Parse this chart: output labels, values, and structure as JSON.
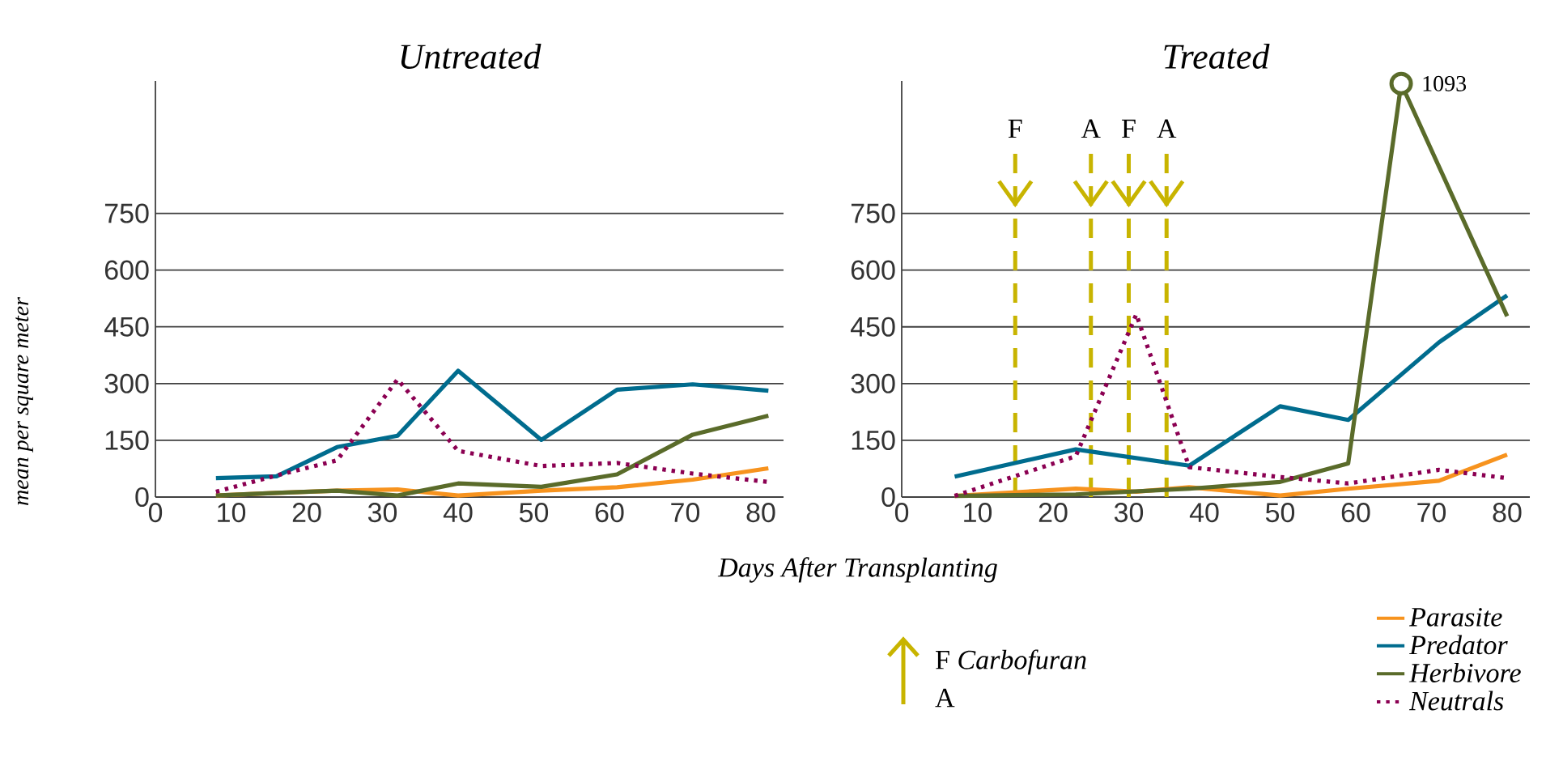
{
  "chart_data": [
    {
      "type": "line",
      "title": "Untreated",
      "xlabel": "Days After Transplanting",
      "ylabel": "mean per square meter",
      "xlim": [
        0,
        83
      ],
      "ylim": [
        0,
        1100
      ],
      "xticks": [
        0,
        10,
        20,
        30,
        40,
        50,
        60,
        70,
        80
      ],
      "yticks": [
        0,
        150,
        300,
        450,
        600,
        750
      ],
      "grid": "y",
      "x": [
        8,
        16,
        24,
        32,
        40,
        51,
        61,
        71,
        81
      ],
      "series": [
        {
          "color": "#f7931e",
          "values": [
            4,
            11,
            17,
            20,
            4,
            17,
            26,
            46,
            76
          ]
        },
        {
          "color": "#006c8e",
          "values": [
            50,
            55,
            132,
            162,
            334,
            151,
            284,
            298,
            281
          ]
        },
        {
          "color": "#5a6b2a",
          "values": [
            4,
            11,
            17,
            4,
            36,
            27,
            60,
            165,
            215
          ]
        },
        {
          "color": "#8b0052",
          "line_style": "dotted",
          "values": [
            14,
            57,
            97,
            311,
            122,
            82,
            90,
            62,
            40
          ]
        }
      ]
    },
    {
      "type": "line",
      "title": "Treated",
      "xlim": [
        0,
        83
      ],
      "ylim": [
        0,
        1100
      ],
      "xticks": [
        0,
        10,
        20,
        30,
        40,
        50,
        60,
        70,
        80
      ],
      "yticks": [
        0,
        150,
        300,
        450,
        600,
        750
      ],
      "grid": "y",
      "legend": "bottom right",
      "series": [
        {
          "name": "Parasite",
          "color": "#f7931e",
          "x": [
            7,
            23,
            31,
            38,
            50,
            59,
            71,
            80
          ],
          "values": [
            3,
            22,
            14,
            26,
            4,
            22,
            43,
            112
          ]
        },
        {
          "name": "Predator",
          "color": "#006c8e",
          "x": [
            7,
            23,
            38,
            50,
            59,
            71,
            80
          ],
          "values": [
            54,
            126,
            83,
            240,
            204,
            409,
            533
          ]
        },
        {
          "name": "Herbivore",
          "color": "#5a6b2a",
          "x": [
            7,
            23,
            38,
            50,
            59,
            66,
            80
          ],
          "values": [
            3,
            7,
            22,
            40,
            89,
            1093,
            478
          ]
        },
        {
          "name": "Neutrals",
          "color": "#8b0052",
          "line_style": "dotted",
          "x": [
            7,
            23,
            31,
            38,
            50,
            59,
            71,
            80
          ],
          "values": [
            3,
            108,
            483,
            79,
            53,
            36,
            72,
            50
          ]
        }
      ],
      "ref_lines": [
        {
          "axis": "x",
          "value": 15,
          "label": "F",
          "color": "#c8b400",
          "line_style": "dashed"
        },
        {
          "axis": "x",
          "value": 25,
          "label": "A",
          "color": "#c8b400",
          "line_style": "dashed"
        },
        {
          "axis": "x",
          "value": 30,
          "label": "F",
          "color": "#c8b400",
          "line_style": "dashed"
        },
        {
          "axis": "x",
          "value": 35,
          "label": "A",
          "color": "#c8b400",
          "line_style": "dashed"
        }
      ],
      "annotations": [
        {
          "text": "1093",
          "x": 66,
          "y": 1093
        },
        "F *Carbofuran*",
        "A"
      ]
    }
  ]
}
